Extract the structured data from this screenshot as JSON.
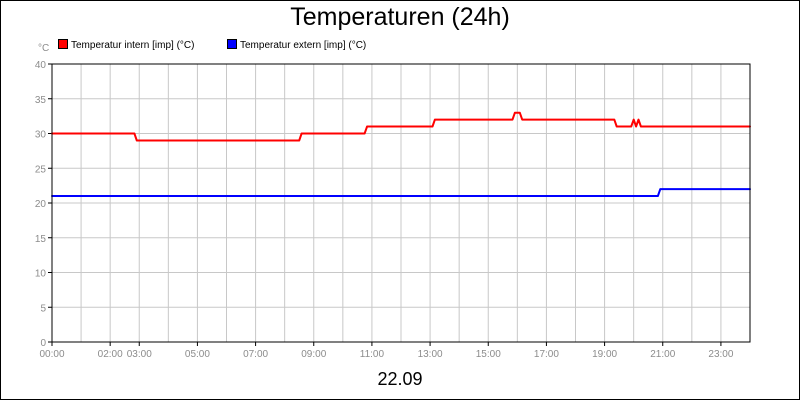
{
  "chart_data": {
    "type": "line",
    "title": "Temperaturen (24h)",
    "unit_label": "°C",
    "date_label": "22.09",
    "xlim": [
      "00:00",
      "24:00"
    ],
    "ylim": [
      0,
      40
    ],
    "y_ticks": [
      "0",
      "5",
      "10",
      "15",
      "20",
      "25",
      "30",
      "35",
      "40"
    ],
    "x_tick_labels": [
      "00:00",
      "02:00",
      "03:00",
      "05:00",
      "07:00",
      "09:00",
      "11:00",
      "13:00",
      "15:00",
      "17:00",
      "19:00",
      "21:00",
      "23:00"
    ],
    "grid": true,
    "legend_position": "top-left",
    "series": [
      {
        "name": "Temperatur intern [imp] (°C)",
        "color": "#ff0000",
        "points": [
          [
            "00:00",
            30
          ],
          [
            "02:50",
            30
          ],
          [
            "02:55",
            29
          ],
          [
            "08:30",
            29
          ],
          [
            "08:35",
            30
          ],
          [
            "10:45",
            30
          ],
          [
            "10:50",
            31
          ],
          [
            "13:05",
            31
          ],
          [
            "13:10",
            32
          ],
          [
            "15:50",
            32
          ],
          [
            "15:55",
            33
          ],
          [
            "16:05",
            33
          ],
          [
            "16:10",
            32
          ],
          [
            "19:20",
            32
          ],
          [
            "19:25",
            31
          ],
          [
            "19:55",
            31
          ],
          [
            "20:00",
            32
          ],
          [
            "20:05",
            31
          ],
          [
            "20:10",
            32
          ],
          [
            "20:15",
            31
          ],
          [
            "24:00",
            31
          ]
        ]
      },
      {
        "name": "Temperatur extern [imp] (°C)",
        "color": "#0000ff",
        "points": [
          [
            "00:00",
            21
          ],
          [
            "20:50",
            21
          ],
          [
            "20:55",
            22
          ],
          [
            "24:00",
            22
          ]
        ]
      }
    ]
  }
}
